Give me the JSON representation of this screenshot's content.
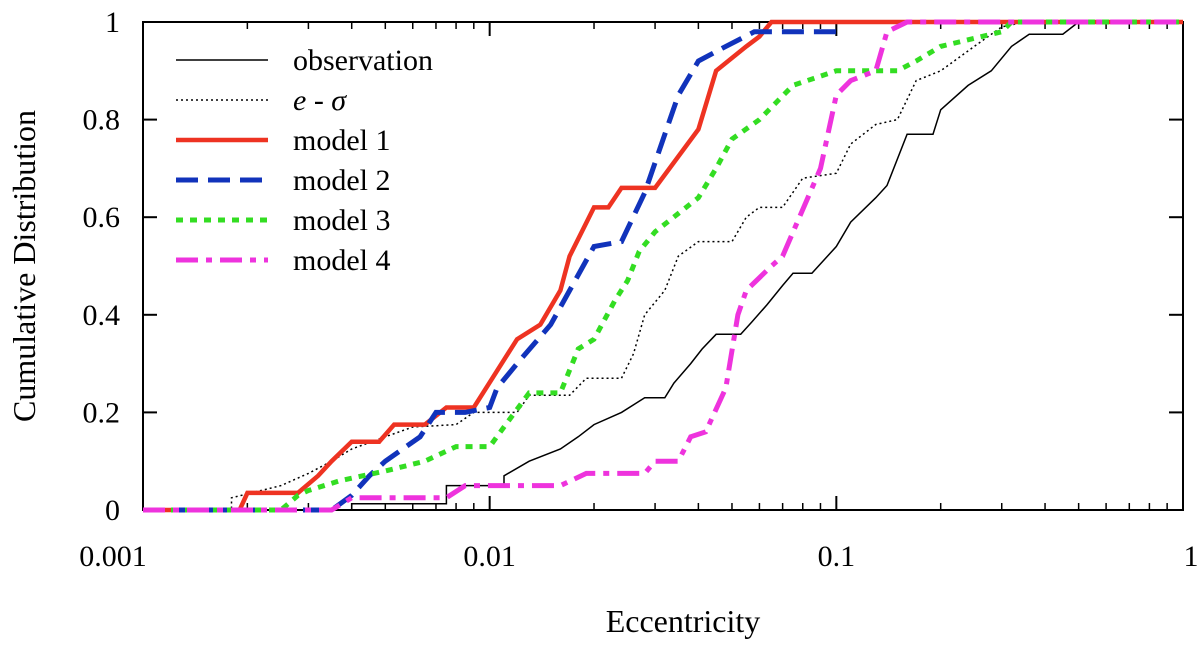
{
  "chart_data": {
    "type": "line",
    "title": "",
    "xlabel": "Eccentricity",
    "ylabel": "Cumulative Distribution",
    "xscale": "log",
    "xlim": [
      0.001,
      1
    ],
    "ylim": [
      0,
      1
    ],
    "xticks": [
      {
        "value": 0.001,
        "label": "0.001"
      },
      {
        "value": 0.01,
        "label": "0.01"
      },
      {
        "value": 0.1,
        "label": "0.1"
      },
      {
        "value": 1,
        "label": "1"
      }
    ],
    "yticks": [
      {
        "value": 0,
        "label": "0"
      },
      {
        "value": 0.2,
        "label": "0.2"
      },
      {
        "value": 0.4,
        "label": "0.4"
      },
      {
        "value": 0.6,
        "label": "0.6"
      },
      {
        "value": 0.8,
        "label": "0.8"
      },
      {
        "value": 1,
        "label": "1"
      }
    ],
    "grid": false,
    "legend_position": "top-left",
    "series": [
      {
        "name": "observation",
        "label": "observation",
        "color": "#000000",
        "style": "solid-thin",
        "points": [
          [
            0.001,
            0
          ],
          [
            0.004,
            0
          ],
          [
            0.004,
            0.013
          ],
          [
            0.0075,
            0.013
          ],
          [
            0.0075,
            0.05
          ],
          [
            0.011,
            0.05
          ],
          [
            0.011,
            0.07
          ],
          [
            0.013,
            0.1
          ],
          [
            0.016,
            0.125
          ],
          [
            0.018,
            0.15
          ],
          [
            0.02,
            0.175
          ],
          [
            0.024,
            0.2
          ],
          [
            0.028,
            0.23
          ],
          [
            0.032,
            0.23
          ],
          [
            0.034,
            0.26
          ],
          [
            0.038,
            0.3
          ],
          [
            0.041,
            0.33
          ],
          [
            0.045,
            0.36
          ],
          [
            0.053,
            0.36
          ],
          [
            0.057,
            0.385
          ],
          [
            0.063,
            0.42
          ],
          [
            0.07,
            0.46
          ],
          [
            0.075,
            0.485
          ],
          [
            0.085,
            0.485
          ],
          [
            0.1,
            0.54
          ],
          [
            0.11,
            0.59
          ],
          [
            0.13,
            0.64
          ],
          [
            0.14,
            0.665
          ],
          [
            0.16,
            0.77
          ],
          [
            0.19,
            0.77
          ],
          [
            0.2,
            0.82
          ],
          [
            0.24,
            0.87
          ],
          [
            0.28,
            0.9
          ],
          [
            0.32,
            0.95
          ],
          [
            0.36,
            0.975
          ],
          [
            0.45,
            0.975
          ],
          [
            0.5,
            1
          ],
          [
            1,
            1
          ]
        ]
      },
      {
        "name": "e-sigma",
        "label": "e - σ",
        "color": "#000000",
        "style": "dotted",
        "points": [
          [
            0.001,
            0
          ],
          [
            0.0018,
            0
          ],
          [
            0.0018,
            0.025
          ],
          [
            0.0025,
            0.05
          ],
          [
            0.003,
            0.075
          ],
          [
            0.0035,
            0.1
          ],
          [
            0.004,
            0.125
          ],
          [
            0.005,
            0.15
          ],
          [
            0.006,
            0.17
          ],
          [
            0.008,
            0.175
          ],
          [
            0.009,
            0.2
          ],
          [
            0.012,
            0.2
          ],
          [
            0.013,
            0.235
          ],
          [
            0.017,
            0.235
          ],
          [
            0.019,
            0.27
          ],
          [
            0.024,
            0.27
          ],
          [
            0.026,
            0.32
          ],
          [
            0.028,
            0.4
          ],
          [
            0.032,
            0.45
          ],
          [
            0.035,
            0.52
          ],
          [
            0.04,
            0.55
          ],
          [
            0.05,
            0.55
          ],
          [
            0.055,
            0.6
          ],
          [
            0.06,
            0.62
          ],
          [
            0.07,
            0.62
          ],
          [
            0.08,
            0.68
          ],
          [
            0.1,
            0.69
          ],
          [
            0.11,
            0.75
          ],
          [
            0.13,
            0.79
          ],
          [
            0.15,
            0.8
          ],
          [
            0.17,
            0.88
          ],
          [
            0.2,
            0.9
          ],
          [
            0.25,
            0.95
          ],
          [
            0.3,
            0.99
          ],
          [
            0.35,
            1
          ],
          [
            1,
            1
          ]
        ]
      },
      {
        "name": "model 1",
        "label": "model 1",
        "color": "#ee3322",
        "style": "solid-thick",
        "points": [
          [
            0.001,
            0
          ],
          [
            0.0019,
            0
          ],
          [
            0.002,
            0.035
          ],
          [
            0.0028,
            0.035
          ],
          [
            0.0032,
            0.07
          ],
          [
            0.0035,
            0.1
          ],
          [
            0.004,
            0.14
          ],
          [
            0.0048,
            0.14
          ],
          [
            0.0053,
            0.175
          ],
          [
            0.0065,
            0.175
          ],
          [
            0.0075,
            0.21
          ],
          [
            0.009,
            0.21
          ],
          [
            0.012,
            0.35
          ],
          [
            0.014,
            0.38
          ],
          [
            0.016,
            0.45
          ],
          [
            0.017,
            0.52
          ],
          [
            0.02,
            0.62
          ],
          [
            0.022,
            0.62
          ],
          [
            0.024,
            0.66
          ],
          [
            0.03,
            0.66
          ],
          [
            0.04,
            0.78
          ],
          [
            0.045,
            0.9
          ],
          [
            0.055,
            0.95
          ],
          [
            0.06,
            0.97
          ],
          [
            0.065,
            1
          ],
          [
            1,
            1
          ]
        ]
      },
      {
        "name": "model 2",
        "label": "model 2",
        "color": "#1133bb",
        "style": "dashed-thick",
        "points": [
          [
            0.001,
            0
          ],
          [
            0.0035,
            0
          ],
          [
            0.004,
            0.03
          ],
          [
            0.0045,
            0.07
          ],
          [
            0.005,
            0.1
          ],
          [
            0.0063,
            0.15
          ],
          [
            0.007,
            0.2
          ],
          [
            0.0085,
            0.2
          ],
          [
            0.01,
            0.21
          ],
          [
            0.0105,
            0.25
          ],
          [
            0.012,
            0.3
          ],
          [
            0.015,
            0.38
          ],
          [
            0.02,
            0.54
          ],
          [
            0.024,
            0.55
          ],
          [
            0.028,
            0.65
          ],
          [
            0.035,
            0.85
          ],
          [
            0.04,
            0.92
          ],
          [
            0.048,
            0.95
          ],
          [
            0.058,
            0.98
          ],
          [
            0.1,
            0.98
          ]
        ]
      },
      {
        "name": "model 3",
        "label": "model 3",
        "color": "#33dd22",
        "style": "dotted-thick",
        "points": [
          [
            0.001,
            0
          ],
          [
            0.0025,
            0
          ],
          [
            0.0028,
            0.03
          ],
          [
            0.003,
            0.04
          ],
          [
            0.0037,
            0.06
          ],
          [
            0.005,
            0.08
          ],
          [
            0.0065,
            0.1
          ],
          [
            0.008,
            0.13
          ],
          [
            0.01,
            0.13
          ],
          [
            0.011,
            0.17
          ],
          [
            0.013,
            0.24
          ],
          [
            0.016,
            0.24
          ],
          [
            0.018,
            0.33
          ],
          [
            0.02,
            0.35
          ],
          [
            0.023,
            0.43
          ],
          [
            0.025,
            0.47
          ],
          [
            0.027,
            0.53
          ],
          [
            0.03,
            0.57
          ],
          [
            0.04,
            0.64
          ],
          [
            0.045,
            0.7
          ],
          [
            0.05,
            0.76
          ],
          [
            0.06,
            0.8
          ],
          [
            0.075,
            0.87
          ],
          [
            0.1,
            0.9
          ],
          [
            0.15,
            0.9
          ],
          [
            0.17,
            0.92
          ],
          [
            0.2,
            0.95
          ],
          [
            0.3,
            0.98
          ],
          [
            0.32,
            1
          ],
          [
            1,
            1
          ]
        ]
      },
      {
        "name": "model 4",
        "label": "model 4",
        "color": "#ee33dd",
        "style": "dashdot-thick",
        "points": [
          [
            0.001,
            0
          ],
          [
            0.0035,
            0
          ],
          [
            0.004,
            0.025
          ],
          [
            0.0075,
            0.025
          ],
          [
            0.0085,
            0.05
          ],
          [
            0.016,
            0.05
          ],
          [
            0.019,
            0.075
          ],
          [
            0.028,
            0.075
          ],
          [
            0.03,
            0.1
          ],
          [
            0.035,
            0.1
          ],
          [
            0.038,
            0.15
          ],
          [
            0.042,
            0.16
          ],
          [
            0.048,
            0.25
          ],
          [
            0.052,
            0.4
          ],
          [
            0.055,
            0.45
          ],
          [
            0.065,
            0.5
          ],
          [
            0.07,
            0.52
          ],
          [
            0.09,
            0.7
          ],
          [
            0.1,
            0.85
          ],
          [
            0.11,
            0.88
          ],
          [
            0.13,
            0.9
          ],
          [
            0.14,
            0.98
          ],
          [
            0.16,
            1
          ],
          [
            1,
            1
          ]
        ]
      }
    ]
  }
}
